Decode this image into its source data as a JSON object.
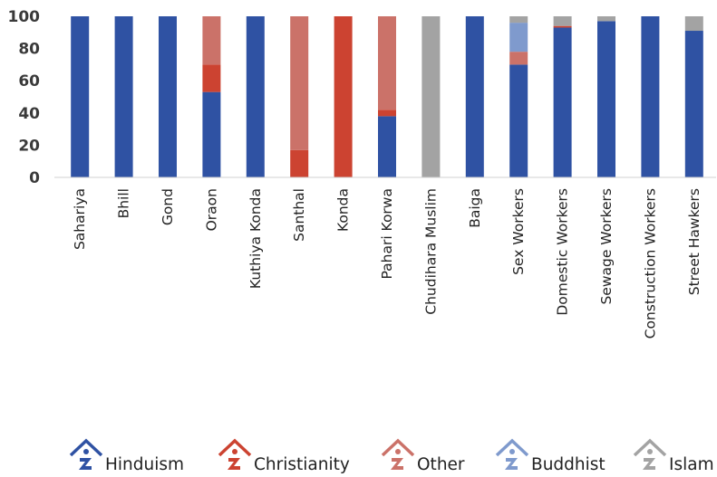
{
  "chart_data": {
    "type": "bar",
    "stacked": true,
    "categories": [
      "Sahariya",
      "Bhill",
      "Gond",
      "Oraon",
      "Kuthiya Konda",
      "Santhal",
      "Konda",
      "Pahari Korwa",
      "Chudihara Muslim",
      "Baiga",
      "Sex Workers",
      "Domestic Workers",
      "Sewage Workers",
      "Construction Workers",
      "Street Hawkers"
    ],
    "series": [
      {
        "name": "Hinduism",
        "color": "#2f52a3",
        "values": [
          100,
          100,
          100,
          53,
          100,
          0,
          0,
          38,
          0,
          100,
          70,
          93,
          97,
          100,
          91
        ]
      },
      {
        "name": "Christianity",
        "color": "#cc4331",
        "values": [
          0,
          0,
          0,
          17,
          0,
          17,
          100,
          4,
          0,
          0,
          0,
          1,
          0,
          0,
          0
        ]
      },
      {
        "name": "Other",
        "color": "#cb7269",
        "values": [
          0,
          0,
          0,
          30,
          0,
          83,
          0,
          58,
          0,
          0,
          8,
          0,
          0,
          0,
          0
        ]
      },
      {
        "name": "Buddhist",
        "color": "#7f9acd",
        "values": [
          0,
          0,
          0,
          0,
          0,
          0,
          0,
          0,
          0,
          0,
          18,
          0,
          0,
          0,
          0
        ]
      },
      {
        "name": "Islam",
        "color": "#a3a3a3",
        "values": [
          0,
          0,
          0,
          0,
          0,
          0,
          0,
          0,
          100,
          0,
          4,
          6,
          3,
          0,
          9
        ]
      }
    ],
    "yticks": [
      0,
      20,
      40,
      60,
      80,
      100
    ],
    "ylim": [
      0,
      100
    ],
    "grid": false,
    "legend_position": "bottom",
    "legend_icon": "temple-icon"
  }
}
